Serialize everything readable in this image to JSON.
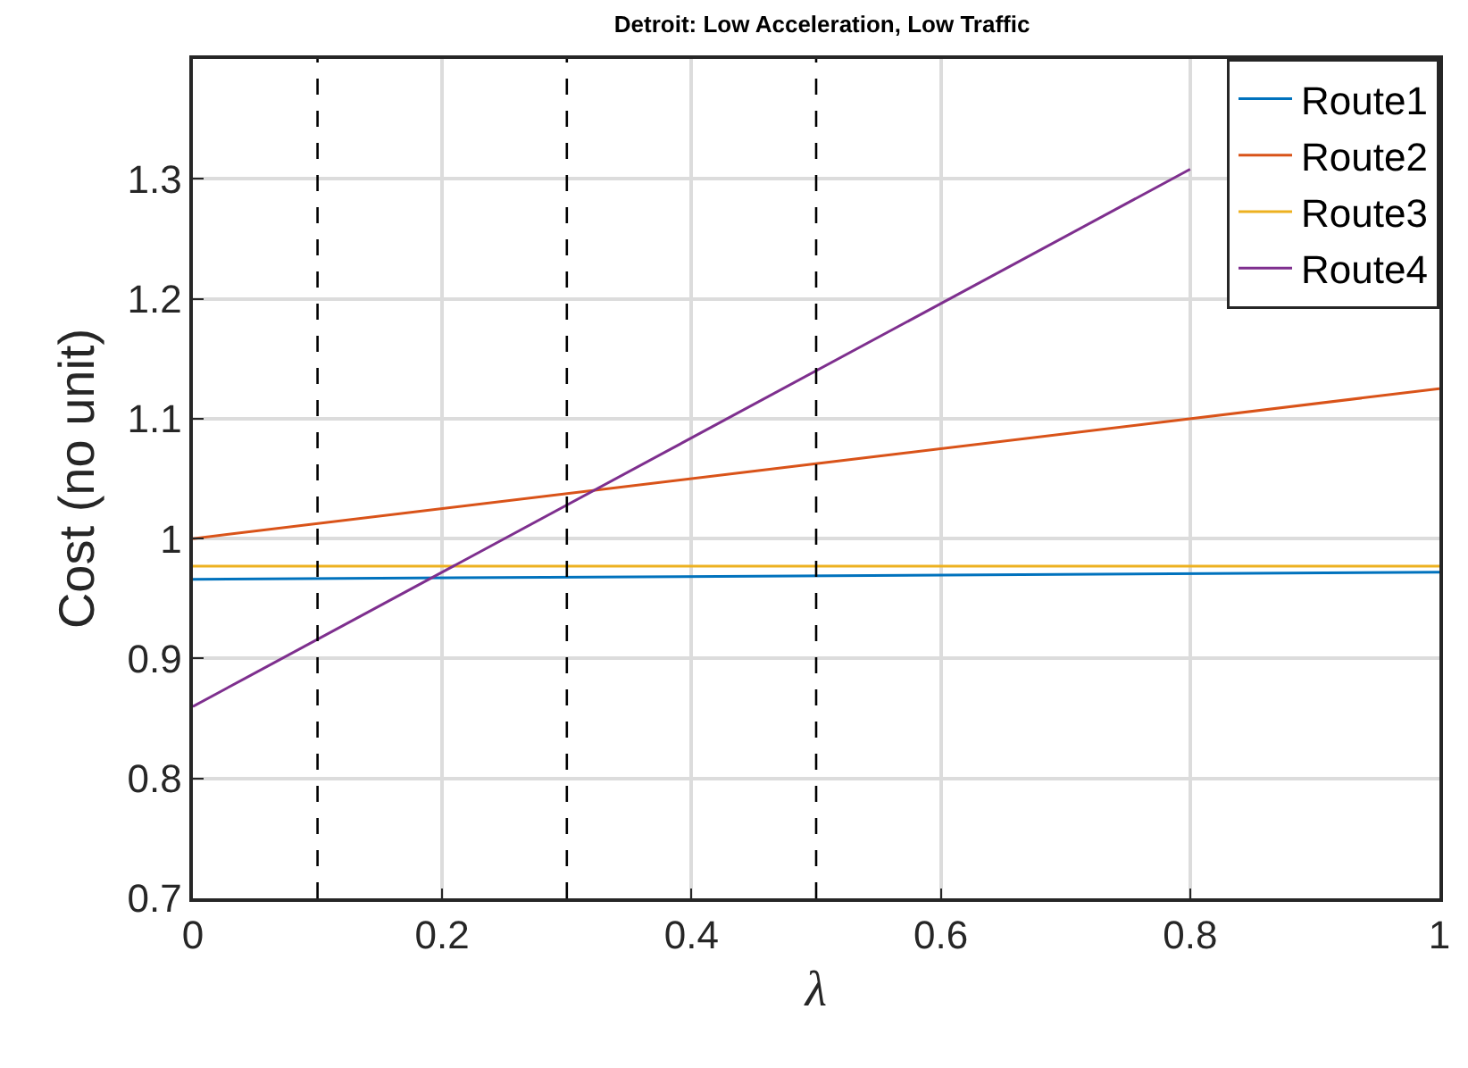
{
  "chart_data": {
    "type": "line",
    "title": "Detroit: Low Acceleration, Low Traffic",
    "xlabel": "λ",
    "ylabel": "Cost (no unit)",
    "series": [
      {
        "name": "Route1",
        "color": "#0072bd",
        "x": [
          0,
          1
        ],
        "values": [
          0.966,
          0.972
        ]
      },
      {
        "name": "Route2",
        "color": "#d95319",
        "x": [
          0,
          1
        ],
        "values": [
          1.0,
          1.125
        ]
      },
      {
        "name": "Route3",
        "color": "#edb120",
        "x": [
          0,
          1
        ],
        "values": [
          0.977,
          0.977
        ]
      },
      {
        "name": "Route4",
        "color": "#7e2f8e",
        "x": [
          0,
          0.8
        ],
        "values": [
          0.86,
          1.308
        ]
      }
    ],
    "xlim": [
      0,
      1
    ],
    "xticks": [
      0,
      0.2,
      0.4,
      0.6,
      0.8,
      1
    ],
    "ylim": [
      0.7,
      1.4
    ],
    "yticks": [
      0.7,
      0.8,
      0.9,
      1,
      1.1,
      1.2,
      1.3
    ],
    "ref_lines": [
      {
        "axis": "x",
        "value": 0.1,
        "color": "#000000",
        "line_style": "dashed"
      },
      {
        "axis": "x",
        "value": 0.3,
        "color": "#000000",
        "line_style": "dashed"
      },
      {
        "axis": "x",
        "value": 0.5,
        "color": "#000000",
        "line_style": "dashed"
      }
    ],
    "grid": true,
    "legend": "top right",
    "line_style": "solid",
    "marker": "none"
  }
}
